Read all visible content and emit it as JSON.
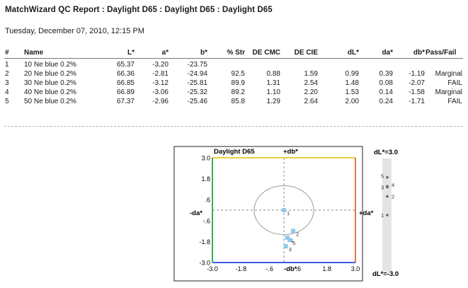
{
  "report": {
    "title": "MatchWizard  QC Report : Daylight D65 : Daylight D65 : Daylight D65",
    "date": "Tuesday, December 07, 2010, 12:15 PM"
  },
  "table": {
    "headers": {
      "num": "#",
      "name": "Name",
      "L": "L*",
      "a": "a*",
      "b": "b*",
      "str": "% Str",
      "decmc": "DE CMC",
      "decie": "DE CIE",
      "dL": "dL*",
      "da": "da*",
      "db": "db*",
      "pf": "Pass/Fail"
    },
    "rows": [
      {
        "num": "1",
        "name": "10 Ne blue 0.2%",
        "L": "65.37",
        "a": "-3.20",
        "b": "-23.75",
        "str": "",
        "decmc": "",
        "decie": "",
        "dL": "",
        "da": "",
        "db": "",
        "pf": ""
      },
      {
        "num": "2",
        "name": "20 Ne blue 0.2%",
        "L": "66.36",
        "a": "-2.81",
        "b": "-24.94",
        "str": "92.5",
        "decmc": "0.88",
        "decie": "1.59",
        "dL": "0.99",
        "da": "0.39",
        "db": "-1.19",
        "pf": "Marginal"
      },
      {
        "num": "3",
        "name": "30 Ne blue 0.2%",
        "L": "66.85",
        "a": "-3.12",
        "b": "-25.81",
        "str": "89.9",
        "decmc": "1.31",
        "decie": "2.54",
        "dL": "1.48",
        "da": "0.08",
        "db": "-2.07",
        "pf": "FAIL"
      },
      {
        "num": "4",
        "name": "40 Ne blue 0.2%",
        "L": "66.89",
        "a": "-3.06",
        "b": "-25.32",
        "str": "89.2",
        "decmc": "1.10",
        "decie": "2.20",
        "dL": "1.53",
        "da": "0.14",
        "db": "-1.58",
        "pf": "Marginal"
      },
      {
        "num": "5",
        "name": "50 Ne blue 0.2%",
        "L": "67.37",
        "a": "-2.96",
        "b": "-25.46",
        "str": "85.8",
        "decmc": "1.29",
        "decie": "2.64",
        "dL": "2.00",
        "da": "0.24",
        "db": "-1.71",
        "pf": "FAIL"
      }
    ]
  },
  "plot": {
    "title": "Daylight D65",
    "pos_db": "+db*",
    "neg_db": "-db*",
    "pos_da": "+da*",
    "neg_da": "-da*",
    "y_ticks": [
      "3.0",
      "1.8",
      ".6",
      "-.6",
      "-1.8",
      "-3.0"
    ],
    "x_ticks": [
      "-3.0",
      "-1.8",
      "-.6",
      ".6",
      "1.8",
      "3.0"
    ],
    "x_tick_values": [
      -3.0,
      -1.8,
      -0.6,
      0.6,
      1.8,
      3.0
    ],
    "y_tick_values": [
      3.0,
      1.8,
      0.6,
      -0.6,
      -1.8,
      -3.0
    ],
    "range": [
      -3.0,
      3.0
    ],
    "tolerance_ellipse": {
      "cx": 0.0,
      "cy": 0.0,
      "rx": 1.25,
      "ry": 1.4
    },
    "points": [
      {
        "label": "1",
        "da": 0.0,
        "db": 0.0
      },
      {
        "label": "2",
        "da": 0.39,
        "db": -1.19
      },
      {
        "label": "3",
        "da": 0.08,
        "db": -2.07
      },
      {
        "label": "4",
        "da": 0.14,
        "db": -1.58
      },
      {
        "label": "5",
        "da": 0.24,
        "db": -1.71
      }
    ],
    "axis_colors": {
      "top": "#e6d23a",
      "right": "#e07a3a",
      "bottom": "#3d5ae0",
      "left": "#35b04a"
    },
    "point_color": "#8ec9ea"
  },
  "dl_bar": {
    "top_label": "dL*=3.0",
    "bottom_label": "dL*=-3.0",
    "range": [
      -3.0,
      3.0
    ],
    "points": [
      {
        "label": "1",
        "dL": 0.0
      },
      {
        "label": "2",
        "dL": 0.99
      },
      {
        "label": "3",
        "dL": 1.48
      },
      {
        "label": "4",
        "dL": 1.53
      },
      {
        "label": "5",
        "dL": 2.0
      }
    ]
  }
}
